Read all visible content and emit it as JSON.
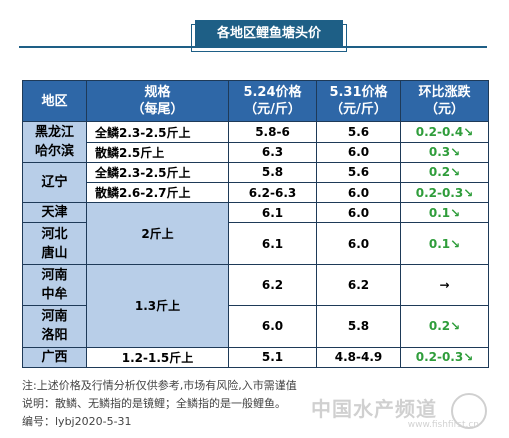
{
  "title": "各地区鲤鱼塘头价",
  "table": {
    "headers": {
      "region": "地区",
      "spec": [
        "规格",
        "（每尾）"
      ],
      "price1": [
        "5.24价格",
        "（元/斤）"
      ],
      "price2": [
        "5.31价格",
        "（元/斤）"
      ],
      "change": [
        "环比涨跌",
        "（元）"
      ]
    },
    "regions": {
      "heilongjiang": [
        "黑龙江",
        "哈尔滨"
      ],
      "liaoning": "辽宁",
      "tianjin": "天津",
      "hebei": [
        "河北",
        "唐山"
      ],
      "henan_zhongmu": [
        "河南",
        "中牟"
      ],
      "henan_luoyang": [
        "河南",
        "洛阳"
      ],
      "guangxi": "广西"
    },
    "rows": [
      {
        "spec": "全鳞2.3-2.5斤上",
        "p1": "5.8-6",
        "p2": "5.6",
        "change": "0.2-0.4↘"
      },
      {
        "spec": "散鳞2.5斤上",
        "p1": "6.3",
        "p2": "6.0",
        "change": "0.3↘"
      },
      {
        "spec": "全鳞2.3-2.5斤上",
        "p1": "5.8",
        "p2": "5.6",
        "change": "0.2↘"
      },
      {
        "spec": "散鳞2.6-2.7斤上",
        "p1": "6.2-6.3",
        "p2": "6.0",
        "change": "0.2-0.3↘"
      },
      {
        "spec": "2斤上",
        "p1": "6.1",
        "p2": "6.0",
        "change": "0.1↘"
      },
      {
        "p1": "6.1",
        "p2": "6.0",
        "change": "0.1↘"
      },
      {
        "spec": "1.3斤上",
        "p1": "6.2",
        "p2": "6.2",
        "change": "→"
      },
      {
        "p1": "6.0",
        "p2": "5.8",
        "change": "0.2↘"
      },
      {
        "spec": "1.2-1.5斤上",
        "p1": "5.1",
        "p2": "4.8-4.9",
        "change": "0.2-0.3↘"
      }
    ]
  },
  "notes": [
    "注:上述价格及行情分析仅供参考,市场有风险,入市需谨值",
    "说明：散鳞、无鳞指的是镜鲤；全鳞指的是一般鲤鱼。",
    "编号：lybj2020-5-31"
  ],
  "watermark": {
    "text": "中国水产频道",
    "url": "www.fishfirst.cn"
  },
  "colors": {
    "header_bg": "#2e67a7",
    "region_bg": "#b8cee8",
    "up_green": "#2f9d3b",
    "title_bg": "#1e5f86"
  }
}
